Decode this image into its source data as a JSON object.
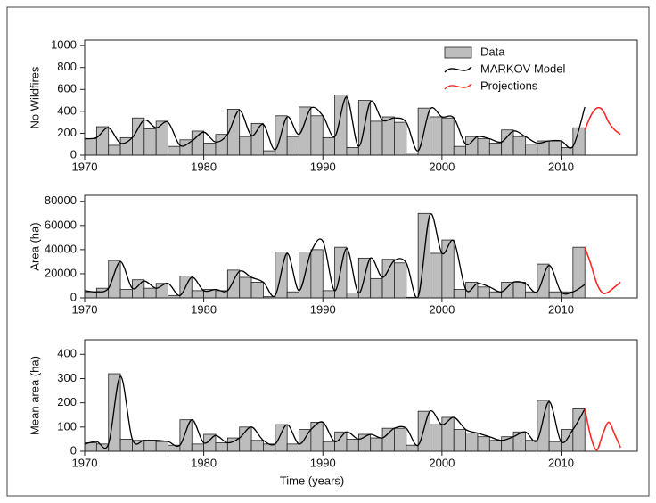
{
  "chart_data": [
    {
      "type": "bar",
      "ylabel": "No Wildfires",
      "legend": "upper right",
      "xlim": [
        1970,
        2016.4
      ],
      "xticks": [
        1970,
        1980,
        1990,
        2000,
        2010
      ],
      "ylim": [
        0,
        1050
      ],
      "yticks": [
        0,
        200,
        400,
        600,
        800,
        1000
      ],
      "series": [
        {
          "name": "Data",
          "kind": "bar",
          "color": "#bdbdbd",
          "x": [
            1970,
            1971,
            1972,
            1973,
            1974,
            1975,
            1976,
            1977,
            1978,
            1979,
            1980,
            1981,
            1982,
            1983,
            1984,
            1985,
            1986,
            1987,
            1988,
            1989,
            1990,
            1991,
            1992,
            1993,
            1994,
            1995,
            1996,
            1997,
            1998,
            1999,
            2000,
            2001,
            2002,
            2003,
            2004,
            2005,
            2006,
            2007,
            2008,
            2009,
            2010,
            2011
          ],
          "values": [
            150,
            260,
            90,
            160,
            340,
            240,
            310,
            80,
            140,
            220,
            110,
            190,
            420,
            170,
            290,
            40,
            360,
            170,
            440,
            360,
            160,
            550,
            70,
            500,
            310,
            350,
            300,
            20,
            430,
            350,
            340,
            80,
            170,
            150,
            110,
            230,
            170,
            100,
            130,
            130,
            70,
            250
          ]
        },
        {
          "name": "MARKOV Model",
          "kind": "line",
          "color": "#000000",
          "x": [
            1970,
            1971,
            1972,
            1973,
            1974,
            1975,
            1976,
            1977,
            1978,
            1979,
            1980,
            1981,
            1982,
            1983,
            1984,
            1985,
            1986,
            1987,
            1988,
            1989,
            1990,
            1991,
            1992,
            1993,
            1994,
            1995,
            1996,
            1997,
            1998,
            1999,
            2000,
            2001,
            2002,
            2003,
            2004,
            2005,
            2006,
            2007,
            2008,
            2009,
            2010,
            2011,
            2012
          ],
          "values": [
            150,
            160,
            250,
            110,
            160,
            320,
            250,
            300,
            90,
            130,
            210,
            120,
            190,
            410,
            180,
            280,
            50,
            350,
            190,
            430,
            360,
            170,
            530,
            80,
            490,
            320,
            340,
            300,
            40,
            420,
            350,
            340,
            100,
            170,
            150,
            120,
            220,
            170,
            110,
            130,
            130,
            80,
            440
          ]
        },
        {
          "name": "Projections",
          "kind": "line",
          "color": "#ff2a2a",
          "x": [
            2012,
            2012.5,
            2013,
            2013.5,
            2014,
            2014.5,
            2015
          ],
          "values": [
            230,
            360,
            430,
            410,
            300,
            230,
            190
          ]
        }
      ]
    },
    {
      "type": "bar",
      "ylabel": "Area (ha)",
      "xlim": [
        1970,
        2016.4
      ],
      "xticks": [
        1970,
        1980,
        1990,
        2000,
        2010
      ],
      "ylim": [
        0,
        85000
      ],
      "yticks": [
        0,
        20000,
        40000,
        60000,
        80000
      ],
      "series": [
        {
          "kind": "bar",
          "color": "#bdbdbd",
          "x": [
            1970,
            1971,
            1972,
            1973,
            1974,
            1975,
            1976,
            1977,
            1978,
            1979,
            1980,
            1981,
            1982,
            1983,
            1984,
            1985,
            1986,
            1987,
            1988,
            1989,
            1990,
            1991,
            1992,
            1993,
            1994,
            1995,
            1996,
            1997,
            1998,
            1999,
            2000,
            2001,
            2002,
            2003,
            2004,
            2005,
            2006,
            2007,
            2008,
            2009,
            2010,
            2011
          ],
          "values": [
            5000,
            8000,
            31000,
            7000,
            15000,
            8000,
            12000,
            2000,
            18000,
            6000,
            7000,
            6000,
            23000,
            17000,
            13000,
            1000,
            38000,
            5000,
            38000,
            40000,
            6000,
            42000,
            4000,
            33000,
            16000,
            32000,
            29000,
            500,
            70000,
            37000,
            48000,
            7000,
            13000,
            9000,
            5000,
            13000,
            13000,
            5000,
            28000,
            5000,
            5000,
            42000
          ]
        },
        {
          "kind": "line",
          "color": "#000000",
          "x": [
            1970,
            1971,
            1972,
            1973,
            1974,
            1975,
            1976,
            1977,
            1978,
            1979,
            1980,
            1981,
            1982,
            1983,
            1984,
            1985,
            1986,
            1987,
            1988,
            1989,
            1990,
            1991,
            1992,
            1993,
            1994,
            1995,
            1996,
            1997,
            1998,
            1999,
            2000,
            2001,
            2002,
            2003,
            2004,
            2005,
            2006,
            2007,
            2008,
            2009,
            2010,
            2011,
            2012
          ],
          "values": [
            6000,
            5000,
            8000,
            30000,
            8000,
            14000,
            8000,
            12000,
            2000,
            17000,
            6000,
            7000,
            6000,
            22000,
            17000,
            13000,
            2000,
            37000,
            6000,
            38000,
            47000,
            6000,
            41000,
            4000,
            33000,
            17000,
            31000,
            29000,
            1000,
            69000,
            37000,
            47000,
            7000,
            12000,
            9000,
            5000,
            13000,
            12000,
            5000,
            27000,
            5000,
            5000,
            11000
          ]
        },
        {
          "kind": "line",
          "color": "#ff2a2a",
          "x": [
            2012,
            2012.5,
            2013,
            2013.5,
            2014,
            2014.5,
            2015
          ],
          "values": [
            42000,
            28000,
            12000,
            4000,
            5000,
            9000,
            13000
          ]
        }
      ]
    },
    {
      "type": "bar",
      "ylabel": "Mean area (ha)",
      "xlabel": "Time (years)",
      "xlim": [
        1970,
        2016.4
      ],
      "xticks": [
        1970,
        1980,
        1990,
        2000,
        2010
      ],
      "ylim": [
        0,
        460
      ],
      "yticks": [
        0,
        100,
        200,
        300,
        400
      ],
      "series": [
        {
          "kind": "bar",
          "color": "#bdbdbd",
          "x": [
            1970,
            1971,
            1972,
            1973,
            1974,
            1975,
            1976,
            1977,
            1978,
            1979,
            1980,
            1981,
            1982,
            1983,
            1984,
            1985,
            1986,
            1987,
            1988,
            1989,
            1990,
            1991,
            1992,
            1993,
            1994,
            1995,
            1996,
            1997,
            1998,
            1999,
            2000,
            2001,
            2002,
            2003,
            2004,
            2005,
            2006,
            2007,
            2008,
            2009,
            2010,
            2011
          ],
          "values": [
            35,
            30,
            320,
            50,
            45,
            45,
            40,
            25,
            130,
            30,
            70,
            35,
            55,
            100,
            45,
            30,
            110,
            30,
            90,
            120,
            40,
            80,
            50,
            70,
            55,
            95,
            95,
            25,
            165,
            110,
            140,
            90,
            75,
            60,
            45,
            60,
            80,
            45,
            210,
            40,
            90,
            175
          ]
        },
        {
          "kind": "line",
          "color": "#000000",
          "x": [
            1970,
            1971,
            1972,
            1973,
            1974,
            1975,
            1976,
            1977,
            1978,
            1979,
            1980,
            1981,
            1982,
            1983,
            1984,
            1985,
            1986,
            1987,
            1988,
            1989,
            1990,
            1991,
            1992,
            1993,
            1994,
            1995,
            1996,
            1997,
            1998,
            1999,
            2000,
            2001,
            2002,
            2003,
            2004,
            2005,
            2006,
            2007,
            2008,
            2009,
            2010,
            2011,
            2012
          ],
          "values": [
            30,
            40,
            30,
            310,
            50,
            45,
            45,
            40,
            25,
            130,
            35,
            65,
            35,
            55,
            100,
            45,
            30,
            110,
            30,
            90,
            120,
            40,
            80,
            50,
            70,
            55,
            95,
            95,
            25,
            165,
            110,
            140,
            90,
            75,
            60,
            45,
            60,
            80,
            45,
            205,
            40,
            90,
            175
          ]
        },
        {
          "kind": "line",
          "color": "#ff2a2a",
          "x": [
            2012,
            2012.5,
            2013,
            2013.5,
            2014,
            2014.5,
            2015
          ],
          "values": [
            175,
            60,
            5,
            70,
            120,
            70,
            15
          ]
        }
      ]
    }
  ]
}
